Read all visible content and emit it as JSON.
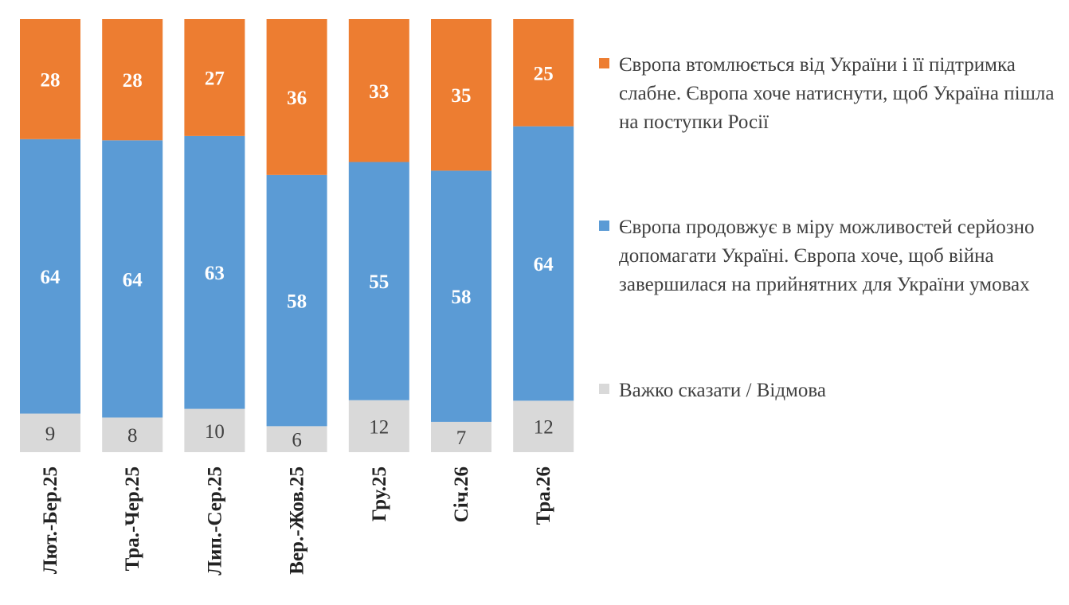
{
  "chart_data": {
    "type": "bar",
    "stacked": true,
    "categories": [
      "Лют.-Бер.25",
      "Тра.-Чер.25",
      "Лип.-Сер.25",
      "Вер.-Жов.25",
      "Гру.25",
      "Січ.26",
      "Тра.26"
    ],
    "series": [
      {
        "name": "Важко сказати / Відмова",
        "color": "#d9d9d9",
        "values": [
          9,
          8,
          10,
          6,
          12,
          7,
          12
        ]
      },
      {
        "name": "Європа продовжує в міру можливостей серйозно допомагати Україні. Європа хоче, щоб війна завершилася на прийнятних для України умовах",
        "color": "#5b9bd5",
        "values": [
          64,
          64,
          63,
          58,
          55,
          58,
          64
        ]
      },
      {
        "name": "Європа втомлюється від України і її підтримка слабне. Європа хоче натиснути, щоб Україна пішла на поступки Росії",
        "color": "#ed7d31",
        "values": [
          28,
          28,
          27,
          36,
          33,
          35,
          25
        ]
      }
    ],
    "ylim": [
      0,
      100
    ],
    "grid": false,
    "legend_position": "right",
    "title": "",
    "xlabel": "",
    "ylabel": ""
  }
}
